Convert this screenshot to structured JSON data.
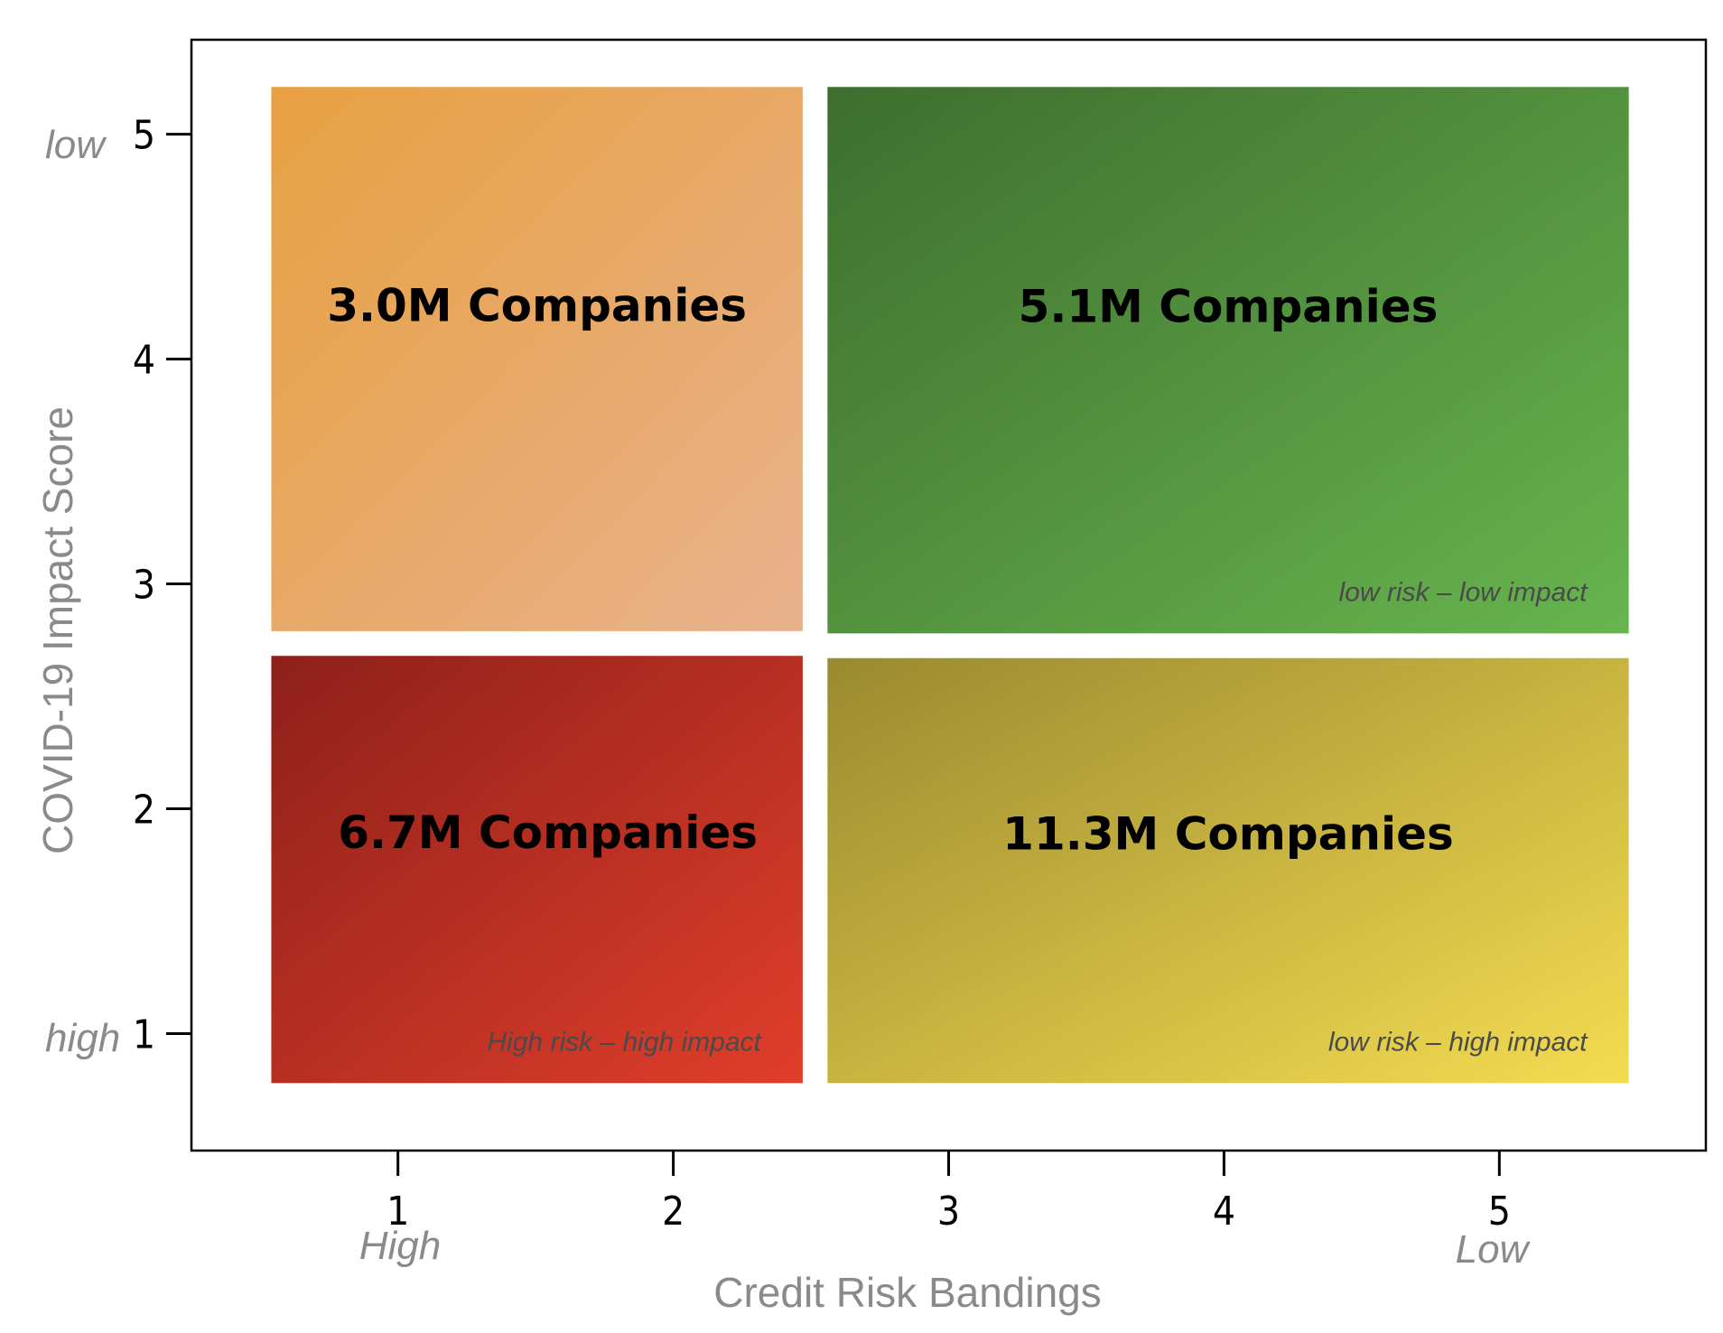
{
  "chart_data": {
    "type": "heatmap",
    "xlabel": "Credit Risk Bandings",
    "ylabel": "COVID-19 Impact Score",
    "xlim": [
      0.25,
      5.75
    ],
    "ylim": [
      0.48,
      5.42
    ],
    "x_ticks": [
      "1",
      "2",
      "3",
      "4",
      "5"
    ],
    "y_ticks": [
      "1",
      "2",
      "3",
      "4",
      "5"
    ],
    "x_end_labels": {
      "left": "High",
      "right": "Low"
    },
    "y_end_labels": {
      "bottom": "high",
      "top": "low"
    },
    "grid": false,
    "legend": "none",
    "quadrants": [
      {
        "id": "top-left",
        "x_range": [
          0.54,
          2.47
        ],
        "y_range": [
          2.79,
          5.21
        ],
        "label": "3.0M Companies",
        "value_millions": 3.0,
        "note": "",
        "colors": [
          "#e8a040",
          "#e8b28d"
        ]
      },
      {
        "id": "top-right",
        "x_range": [
          2.56,
          5.47
        ],
        "y_range": [
          2.78,
          5.21
        ],
        "label": "5.1M Companies",
        "value_millions": 5.1,
        "note": "low risk – low impact",
        "colors": [
          "#3e6e2e",
          "#67b54e"
        ]
      },
      {
        "id": "bottom-left",
        "x_range": [
          0.54,
          2.47
        ],
        "y_range": [
          0.78,
          2.68
        ],
        "label": "6.7M Companies",
        "value_millions": 6.7,
        "note": "High risk – high impact",
        "colors": [
          "#8e2019",
          "#e03e2b"
        ]
      },
      {
        "id": "bottom-right",
        "x_range": [
          2.56,
          5.47
        ],
        "y_range": [
          0.78,
          2.67
        ],
        "label": "11.3M Companies",
        "value_millions": 11.3,
        "note": "low risk – high impact",
        "colors": [
          "#9a8a30",
          "#f4dc50"
        ]
      }
    ]
  }
}
